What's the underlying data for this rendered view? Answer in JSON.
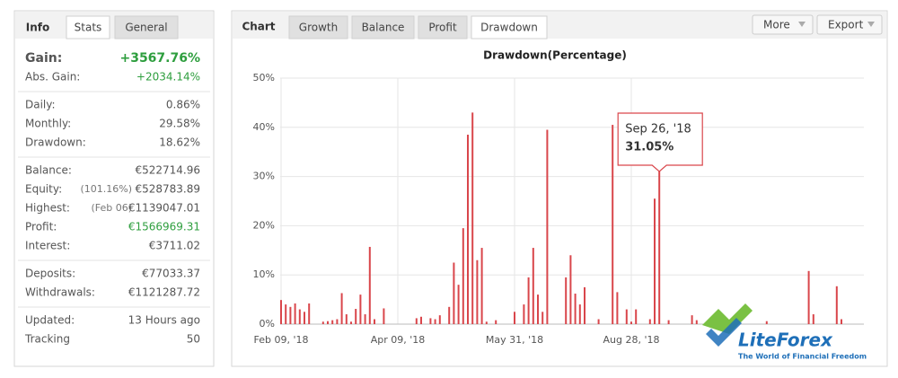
{
  "info_panel": {
    "tabs": [
      "Info",
      "Stats",
      "General"
    ],
    "sections": [
      [
        {
          "label": "Gain:",
          "value": "+3567.76%",
          "color": "#2e9e3e"
        },
        {
          "label": "Abs. Gain:",
          "value": "+2034.14%",
          "color": "#2e9e3e"
        }
      ],
      [
        {
          "label": "Daily:",
          "value": "0.86%"
        },
        {
          "label": "Monthly:",
          "value": "29.58%"
        },
        {
          "label": "Drawdown:",
          "value": "18.62%"
        }
      ],
      [
        {
          "label": "Balance:",
          "value": "€522714.96"
        },
        {
          "label": "Equity:",
          "note": "(101.16%)",
          "value": "€528783.89"
        },
        {
          "label": "Highest:",
          "note": "(Feb 06)",
          "value": "€1139047.01"
        },
        {
          "label": "Profit:",
          "value": "€1566969.31",
          "color": "#2e9e3e"
        },
        {
          "label": "Interest:",
          "value": "€3711.02"
        }
      ],
      [
        {
          "label": "Deposits:",
          "value": "€77033.37"
        },
        {
          "label": "Withdrawals:",
          "value": "€1121287.72"
        }
      ],
      [
        {
          "label": "Updated:",
          "value": "13 Hours ago"
        },
        {
          "label": "Tracking",
          "value": "50"
        }
      ]
    ]
  },
  "chart_panel": {
    "heading": "Chart",
    "tabs": [
      "Growth",
      "Balance",
      "Profit",
      "Drawdown"
    ],
    "buttons": [
      "More",
      "Export"
    ]
  },
  "chart_data": {
    "type": "bar",
    "title": "Drawdown(Percentage)",
    "color": "#d9464b",
    "grid": true,
    "categories": [
      "Feb 09, '18",
      null,
      null,
      null,
      null,
      null,
      null,
      null,
      null,
      null,
      null,
      null,
      null,
      null,
      null,
      null,
      null,
      null,
      null,
      null,
      null,
      null,
      null,
      null,
      null,
      "Apr 09, '18",
      null,
      null,
      null,
      null,
      null,
      null,
      null,
      null,
      null,
      null,
      null,
      null,
      null,
      null,
      null,
      null,
      null,
      null,
      null,
      null,
      null,
      null,
      null,
      null,
      "May 31, '18",
      null,
      null,
      null,
      null,
      null,
      null,
      null,
      null,
      null,
      null,
      null,
      null,
      null,
      null,
      null,
      null,
      null,
      null,
      null,
      null,
      null,
      null,
      null,
      null,
      "Aug 28, '18",
      null,
      null,
      null,
      null,
      null,
      null,
      null,
      null,
      null,
      null,
      null,
      null,
      null,
      null,
      null,
      null,
      null,
      null,
      null,
      null,
      null,
      null,
      null,
      null,
      null,
      null,
      null,
      null,
      null,
      null,
      null,
      null,
      null,
      null,
      null,
      null,
      null,
      null,
      null,
      null,
      null,
      null,
      null,
      null,
      null,
      null,
      null,
      null,
      null
    ],
    "values": [
      4.9,
      4.0,
      3.5,
      4.2,
      3.0,
      2.5,
      4.2,
      0,
      0,
      0.5,
      0.6,
      0.8,
      1.0,
      6.3,
      2.0,
      0.5,
      3.1,
      6.0,
      2.0,
      15.7,
      1.0,
      0,
      3.2,
      0,
      0,
      0,
      0,
      0,
      0,
      1.2,
      1.5,
      0,
      1.2,
      1.0,
      1.8,
      0,
      3.5,
      12.5,
      8.0,
      19.5,
      38.5,
      43.0,
      13.0,
      15.5,
      0.5,
      0,
      0.8,
      0,
      0,
      0,
      2.5,
      0,
      4.0,
      9.5,
      15.5,
      6.0,
      2.5,
      39.5,
      0,
      0,
      0,
      9.5,
      14.0,
      6.2,
      4.0,
      7.5,
      0,
      0,
      1.0,
      0,
      0,
      40.5,
      6.5,
      0,
      3.0,
      0.5,
      3.0,
      0,
      0,
      1.0,
      25.5,
      31.05,
      0,
      0.8,
      0,
      0,
      0,
      0,
      1.8,
      0.8,
      0,
      0,
      0,
      0,
      0,
      0,
      0,
      0,
      0,
      0,
      0,
      0,
      0,
      0,
      0.6,
      0,
      0,
      0,
      0,
      0,
      0,
      0,
      0,
      10.8,
      2.0,
      0,
      0,
      0,
      0,
      7.7,
      1.0,
      0,
      0,
      0,
      0
    ],
    "value_labels": [
      null,
      null,
      null,
      null,
      null,
      null,
      null,
      null,
      null,
      null,
      null,
      null,
      null,
      null,
      null,
      null,
      null,
      null,
      null,
      null,
      null,
      null,
      null,
      null,
      null,
      null,
      null,
      null,
      null,
      null,
      null,
      null,
      null,
      null,
      null,
      null,
      null,
      null,
      null,
      null,
      null,
      null,
      null,
      null,
      null,
      null,
      null,
      null,
      null,
      null,
      null,
      null,
      null,
      null,
      null,
      null,
      null,
      null,
      null,
      null,
      null,
      null,
      null,
      null,
      null,
      null,
      null,
      null,
      null,
      null,
      null,
      null,
      null,
      null,
      null,
      null,
      null,
      null,
      null,
      null,
      null,
      "31.05%",
      null,
      null,
      null,
      null,
      null,
      null,
      null,
      null,
      null,
      null,
      null,
      null,
      null,
      null,
      null,
      null,
      null,
      null,
      null,
      null,
      null,
      null,
      null,
      null,
      null,
      null,
      null,
      null,
      null,
      null,
      null,
      null,
      null,
      null,
      null,
      null,
      null,
      null,
      null,
      null,
      null,
      null,
      null
    ],
    "tooltip_title": "Sep 26, '18",
    "ylim": [
      0,
      50
    ],
    "yticks": [
      {
        "value": 0,
        "label": "0%"
      },
      {
        "value": 10,
        "label": "10%"
      },
      {
        "value": 20,
        "label": "20%"
      },
      {
        "value": 30,
        "label": "30%"
      },
      {
        "value": 40,
        "label": "40%"
      },
      {
        "value": 50,
        "label": "50%"
      }
    ]
  },
  "watermark": {
    "brand": "LiteForex",
    "tagline": "The World of Financial Freedom"
  }
}
